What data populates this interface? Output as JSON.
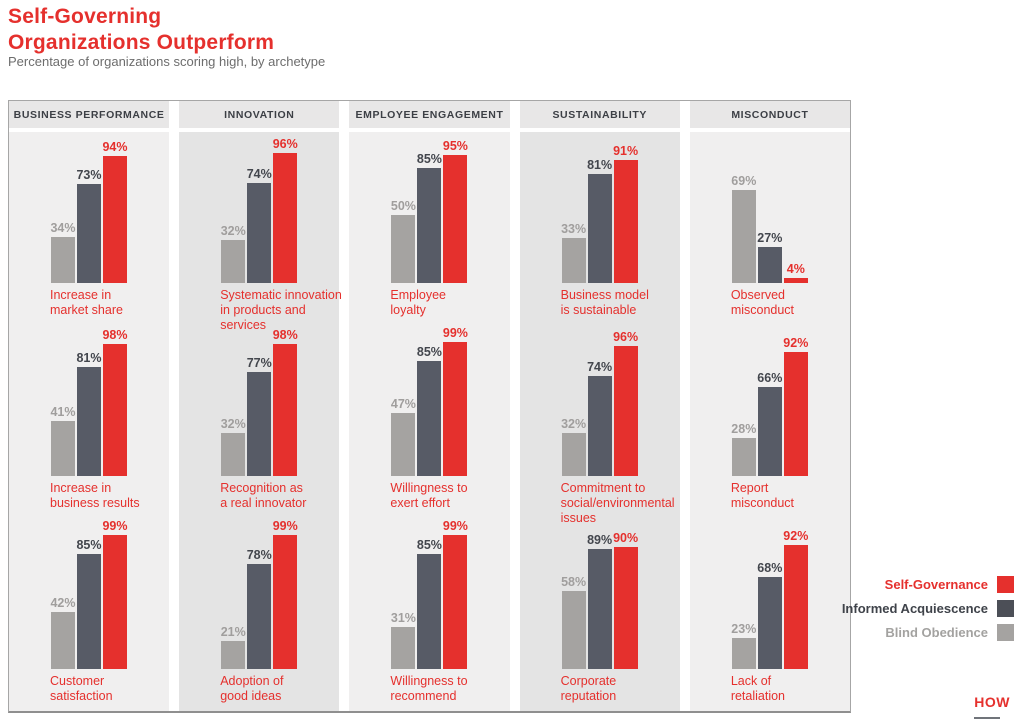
{
  "title": "Self-Governing\nOrganizations Outperform",
  "subtitle": "Percentage of organizations scoring high, by archetype",
  "footer": {
    "logo_text": "HOW"
  },
  "chart_data": {
    "type": "bar",
    "title": "Self-Governing Organizations Outperform",
    "subtitle": "Percentage of organizations scoring high, by archetype",
    "unit": "%",
    "ylim": [
      0,
      100
    ],
    "grid": false,
    "legend_position": "right",
    "series_order": [
      "Blind Obedience",
      "Informed Acquiescence",
      "Self-Governance"
    ],
    "bar_colors": [
      "#a5a3a1",
      "#575b66",
      "#e5302d"
    ],
    "value_label_colors": [
      "#a09e9d",
      "#43464d",
      "#e5302d"
    ],
    "columns": [
      {
        "header": "BUSINESS PERFORMANCE",
        "groups": [
          {
            "label": "Increase in\nmarket share",
            "values": [
              34,
              73,
              94
            ]
          },
          {
            "label": "Increase in\nbusiness results",
            "values": [
              41,
              81,
              98
            ]
          },
          {
            "label": "Customer\nsatisfaction",
            "values": [
              42,
              85,
              99
            ]
          }
        ]
      },
      {
        "header": "INNOVATION",
        "groups": [
          {
            "label": "Systematic innovation\nin products and\nservices",
            "values": [
              32,
              74,
              96
            ]
          },
          {
            "label": "Recognition as\na real innovator",
            "values": [
              32,
              77,
              98
            ]
          },
          {
            "label": "Adoption of\ngood ideas",
            "values": [
              21,
              78,
              99
            ]
          }
        ]
      },
      {
        "header": "EMPLOYEE ENGAGEMENT",
        "groups": [
          {
            "label": "Employee\nloyalty",
            "values": [
              50,
              85,
              95
            ]
          },
          {
            "label": "Willingness to\nexert effort",
            "values": [
              47,
              85,
              99
            ]
          },
          {
            "label": "Willingness to\nrecommend",
            "values": [
              31,
              85,
              99
            ]
          }
        ]
      },
      {
        "header": "SUSTAINABILITY",
        "groups": [
          {
            "label": "Business model\nis sustainable",
            "values": [
              33,
              81,
              91
            ]
          },
          {
            "label": "Commitment to\nsocial/environmental\nissues",
            "values": [
              32,
              74,
              96
            ]
          },
          {
            "label": "Corporate\nreputation",
            "values": [
              58,
              89,
              90
            ]
          }
        ]
      },
      {
        "header": "MISCONDUCT",
        "groups": [
          {
            "label": "Observed\nmisconduct",
            "values": [
              69,
              27,
              4
            ]
          },
          {
            "label": "Report\nmisconduct",
            "values": [
              28,
              66,
              92
            ]
          },
          {
            "label": "Lack of\nretaliation",
            "values": [
              23,
              68,
              92
            ]
          }
        ]
      }
    ],
    "legend": [
      {
        "label": "Self-Governance",
        "color": "#e5302d",
        "text_color": "#e5302d"
      },
      {
        "label": "Informed Acquiescence",
        "color": "#4c4f57",
        "text_color": "#3f434a"
      },
      {
        "label": "Blind Obedience",
        "color": "#a5a3a1",
        "text_color": "#a3a2a0"
      }
    ]
  }
}
